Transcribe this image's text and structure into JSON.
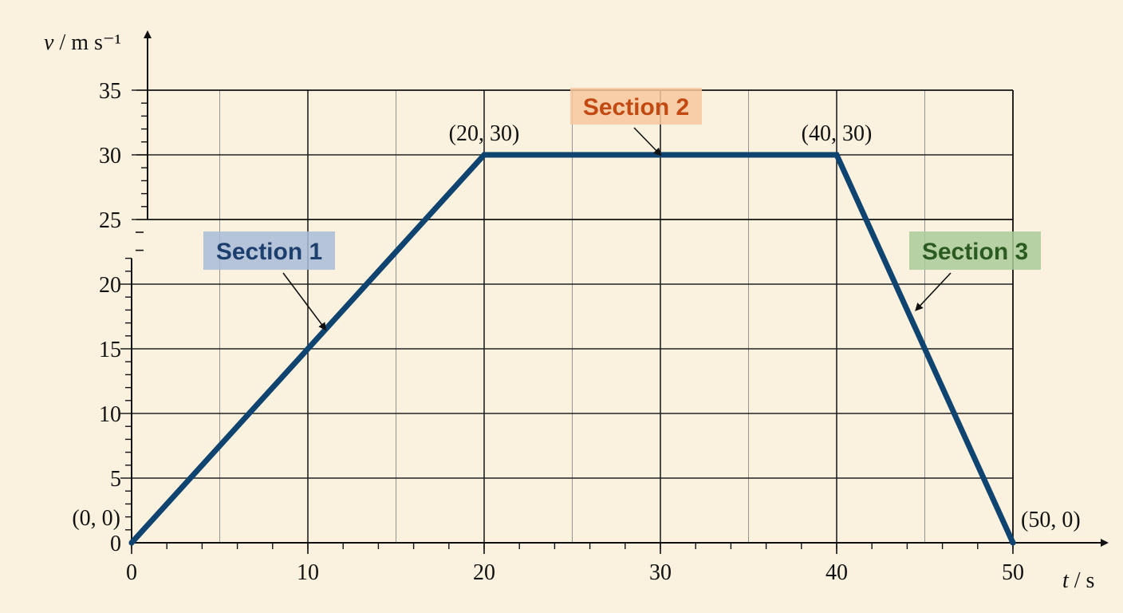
{
  "chart_data": {
    "type": "line",
    "xlabel": "t / s",
    "ylabel": "v / m s⁻¹",
    "xlim": [
      0,
      50
    ],
    "ylim": [
      0,
      35
    ],
    "axis_break": "between 22 and 25 on the y axis",
    "x_ticks": [
      0,
      10,
      20,
      30,
      40,
      50
    ],
    "y_ticks": [
      0,
      5,
      10,
      15,
      20,
      25,
      30,
      35
    ],
    "grid": true,
    "series": [
      {
        "x": [
          0,
          20,
          40,
          50
        ],
        "y": [
          0,
          30,
          30,
          0
        ],
        "color": "#0f4470"
      }
    ],
    "point_labels": [
      {
        "text": "(0, 0)",
        "x": 0,
        "y": 0
      },
      {
        "text": "(20, 30)",
        "x": 20,
        "y": 30
      },
      {
        "text": "(40, 30)",
        "x": 40,
        "y": 30
      },
      {
        "text": "(50, 0)",
        "x": 50,
        "y": 0
      }
    ],
    "annotations": [
      {
        "text": "Section 1",
        "points_to": [
          11,
          16.5
        ],
        "text_color": "#1d3f6e",
        "box_color": "#a9bcd9"
      },
      {
        "text": "Section 2",
        "points_to": [
          30,
          30
        ],
        "text_color": "#c24a12",
        "box_color": "#f6c89e"
      },
      {
        "text": "Section 3",
        "points_to": [
          44.5,
          18
        ],
        "text_color": "#2c5b22",
        "box_color": "#a9cd9a"
      }
    ]
  }
}
